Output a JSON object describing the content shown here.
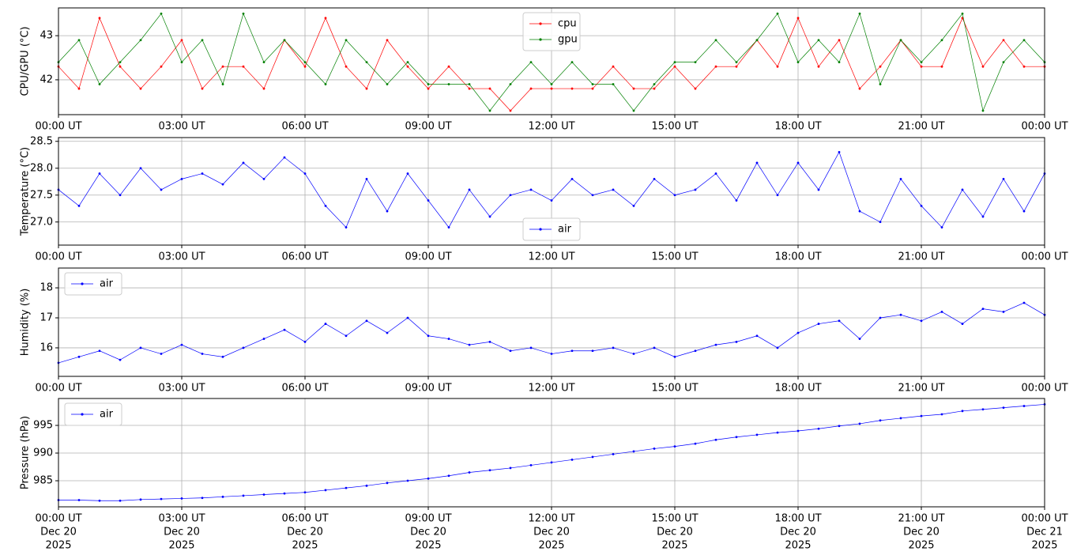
{
  "chart_data": [
    {
      "type": "line",
      "ylabel": "CPU/GPU (°C)",
      "legend": "upper center",
      "grid": true,
      "xlim": [
        0,
        24
      ],
      "ylim": [
        41.21,
        43.63
      ],
      "yticks": [
        42,
        43
      ],
      "xticks": [
        {
          "value": 0,
          "label": "00:00 UT"
        },
        {
          "value": 3,
          "label": "03:00 UT"
        },
        {
          "value": 6,
          "label": "06:00 UT"
        },
        {
          "value": 9,
          "label": "09:00 UT"
        },
        {
          "value": 12,
          "label": "12:00 UT"
        },
        {
          "value": 15,
          "label": "15:00 UT"
        },
        {
          "value": 18,
          "label": "18:00 UT"
        },
        {
          "value": 21,
          "label": "21:00 UT"
        },
        {
          "value": 24,
          "label": "00:00 UT"
        }
      ],
      "x": [
        0,
        0.5,
        1,
        1.5,
        2,
        2.5,
        3,
        3.5,
        4,
        4.5,
        5,
        5.5,
        6,
        6.5,
        7,
        7.5,
        8,
        8.5,
        9,
        9.5,
        10,
        10.5,
        11,
        11.5,
        12,
        12.5,
        13,
        13.5,
        14,
        14.5,
        15,
        15.5,
        16,
        16.5,
        17,
        17.5,
        18,
        18.5,
        19,
        19.5,
        20,
        20.5,
        21,
        21.5,
        22,
        22.5,
        23,
        23.5,
        24
      ],
      "series": [
        {
          "name": "cpu",
          "color": "#ff0000",
          "values": [
            42.3,
            41.8,
            43.4,
            42.3,
            41.8,
            42.3,
            42.9,
            41.8,
            42.3,
            42.3,
            41.8,
            42.9,
            42.3,
            43.4,
            42.3,
            41.8,
            42.9,
            42.3,
            41.8,
            42.3,
            41.8,
            41.8,
            41.3,
            41.8,
            41.8,
            41.8,
            41.8,
            42.3,
            41.8,
            41.8,
            42.3,
            41.8,
            42.3,
            42.3,
            42.9,
            42.3,
            43.4,
            42.3,
            42.9,
            41.8,
            42.3,
            42.9,
            42.3,
            42.3,
            43.4,
            42.3,
            42.9,
            42.3,
            42.3
          ]
        },
        {
          "name": "gpu",
          "color": "#008000",
          "values": [
            42.4,
            42.9,
            41.9,
            42.4,
            42.9,
            43.5,
            42.4,
            42.9,
            41.9,
            43.5,
            42.4,
            42.9,
            42.4,
            41.9,
            42.9,
            42.4,
            41.9,
            42.4,
            41.9,
            41.9,
            41.9,
            41.3,
            41.9,
            42.4,
            41.9,
            42.4,
            41.9,
            41.9,
            41.3,
            41.9,
            42.4,
            42.4,
            42.9,
            42.4,
            42.9,
            43.5,
            42.4,
            42.9,
            42.4,
            43.5,
            41.9,
            42.9,
            42.4,
            42.9,
            43.5,
            41.3,
            42.4,
            42.9,
            42.4
          ]
        }
      ]
    },
    {
      "type": "line",
      "ylabel": "Temperature (°C)",
      "legend": "lower center",
      "grid": true,
      "xlim": [
        0,
        24
      ],
      "ylim": [
        26.57,
        28.57
      ],
      "yticks": [
        {
          "value": 27,
          "label": "27.0"
        },
        27.5,
        {
          "value": 28,
          "label": "28.0"
        },
        28.5
      ],
      "xticks": [
        {
          "value": 0,
          "label": "00:00 UT"
        },
        {
          "value": 3,
          "label": "03:00 UT"
        },
        {
          "value": 6,
          "label": "06:00 UT"
        },
        {
          "value": 9,
          "label": "09:00 UT"
        },
        {
          "value": 12,
          "label": "12:00 UT"
        },
        {
          "value": 15,
          "label": "15:00 UT"
        },
        {
          "value": 18,
          "label": "18:00 UT"
        },
        {
          "value": 21,
          "label": "21:00 UT"
        },
        {
          "value": 24,
          "label": "00:00 UT"
        }
      ],
      "x": [
        0,
        0.5,
        1,
        1.5,
        2,
        2.5,
        3,
        3.5,
        4,
        4.5,
        5,
        5.5,
        6,
        6.5,
        7,
        7.5,
        8,
        8.5,
        9,
        9.5,
        10,
        10.5,
        11,
        11.5,
        12,
        12.5,
        13,
        13.5,
        14,
        14.5,
        15,
        15.5,
        16,
        16.5,
        17,
        17.5,
        18,
        18.5,
        19,
        19.5,
        20,
        20.5,
        21,
        21.5,
        22,
        22.5,
        23,
        23.5,
        24
      ],
      "series": [
        {
          "name": "air",
          "color": "#0000ff",
          "values": [
            27.6,
            27.3,
            27.9,
            27.5,
            28.0,
            27.6,
            27.8,
            27.9,
            27.7,
            28.1,
            27.8,
            28.2,
            27.9,
            27.3,
            26.9,
            27.8,
            27.2,
            27.9,
            27.4,
            26.9,
            27.6,
            27.1,
            27.5,
            27.6,
            27.4,
            27.8,
            27.5,
            27.6,
            27.3,
            27.8,
            27.5,
            27.6,
            27.9,
            27.4,
            28.1,
            27.5,
            28.1,
            27.6,
            28.3,
            27.2,
            27.0,
            27.8,
            27.3,
            26.9,
            27.6,
            27.1,
            27.8,
            27.2,
            27.9
          ]
        }
      ]
    },
    {
      "type": "line",
      "ylabel": "Humidity (%)",
      "legend": "upper left",
      "grid": true,
      "xlim": [
        0,
        24
      ],
      "ylim": [
        15.05,
        18.66
      ],
      "yticks": [
        16,
        17,
        18
      ],
      "xticks": [
        {
          "value": 0,
          "label": "00:00 UT"
        },
        {
          "value": 3,
          "label": "03:00 UT"
        },
        {
          "value": 6,
          "label": "06:00 UT"
        },
        {
          "value": 9,
          "label": "09:00 UT"
        },
        {
          "value": 12,
          "label": "12:00 UT"
        },
        {
          "value": 15,
          "label": "15:00 UT"
        },
        {
          "value": 18,
          "label": "18:00 UT"
        },
        {
          "value": 21,
          "label": "21:00 UT"
        },
        {
          "value": 24,
          "label": "00:00 UT"
        }
      ],
      "x": [
        0,
        0.5,
        1,
        1.5,
        2,
        2.5,
        3,
        3.5,
        4,
        4.5,
        5,
        5.5,
        6,
        6.5,
        7,
        7.5,
        8,
        8.5,
        9,
        9.5,
        10,
        10.5,
        11,
        11.5,
        12,
        12.5,
        13,
        13.5,
        14,
        14.5,
        15,
        15.5,
        16,
        16.5,
        17,
        17.5,
        18,
        18.5,
        19,
        19.5,
        20,
        20.5,
        21,
        21.5,
        22,
        22.5,
        23,
        23.5,
        24
      ],
      "series": [
        {
          "name": "air",
          "color": "#0000ff",
          "values": [
            15.5,
            15.7,
            15.9,
            15.6,
            16.0,
            15.8,
            16.1,
            15.8,
            15.7,
            16.0,
            16.3,
            16.6,
            16.2,
            16.8,
            16.4,
            16.9,
            16.5,
            17.0,
            16.4,
            16.3,
            16.1,
            16.2,
            15.9,
            16.0,
            15.8,
            15.9,
            15.9,
            16.0,
            15.8,
            16.0,
            15.7,
            15.9,
            16.1,
            16.2,
            16.4,
            16.0,
            16.5,
            16.8,
            16.9,
            16.3,
            17.0,
            17.1,
            16.9,
            17.2,
            16.8,
            17.3,
            17.2,
            17.5,
            17.1
          ]
        }
      ]
    },
    {
      "type": "line",
      "ylabel": "Pressure (hPa)",
      "legend": "upper left",
      "grid": true,
      "xlim": [
        0,
        24
      ],
      "ylim": [
        980.29,
        999.86
      ],
      "yticks": [
        985,
        990,
        995
      ],
      "xticks": [
        {
          "value": 0,
          "label": [
            "00:00 UT",
            "Dec 20",
            "2025"
          ]
        },
        {
          "value": 3,
          "label": [
            "03:00 UT",
            "Dec 20",
            "2025"
          ]
        },
        {
          "value": 6,
          "label": [
            "06:00 UT",
            "Dec 20",
            "2025"
          ]
        },
        {
          "value": 9,
          "label": [
            "09:00 UT",
            "Dec 20",
            "2025"
          ]
        },
        {
          "value": 12,
          "label": [
            "12:00 UT",
            "Dec 20",
            "2025"
          ]
        },
        {
          "value": 15,
          "label": [
            "15:00 UT",
            "Dec 20",
            "2025"
          ]
        },
        {
          "value": 18,
          "label": [
            "18:00 UT",
            "Dec 20",
            "2025"
          ]
        },
        {
          "value": 21,
          "label": [
            "21:00 UT",
            "Dec 20",
            "2025"
          ]
        },
        {
          "value": 24,
          "label": [
            "00:00 UT",
            "Dec 21",
            "2025"
          ]
        }
      ],
      "x": [
        0,
        0.5,
        1,
        1.5,
        2,
        2.5,
        3,
        3.5,
        4,
        4.5,
        5,
        5.5,
        6,
        6.5,
        7,
        7.5,
        8,
        8.5,
        9,
        9.5,
        10,
        10.5,
        11,
        11.5,
        12,
        12.5,
        13,
        13.5,
        14,
        14.5,
        15,
        15.5,
        16,
        16.5,
        17,
        17.5,
        18,
        18.5,
        19,
        19.5,
        20,
        20.5,
        21,
        21.5,
        22,
        22.5,
        23,
        23.5,
        24
      ],
      "series": [
        {
          "name": "air",
          "color": "#0000ff",
          "values": [
            981.5,
            981.5,
            981.4,
            981.4,
            981.6,
            981.7,
            981.8,
            981.9,
            982.1,
            982.3,
            982.5,
            982.7,
            982.9,
            983.3,
            983.7,
            984.1,
            984.6,
            985.0,
            985.4,
            985.9,
            986.5,
            986.9,
            987.3,
            987.8,
            988.3,
            988.8,
            989.3,
            989.8,
            990.3,
            990.8,
            991.2,
            991.7,
            992.4,
            992.9,
            993.3,
            993.7,
            994.0,
            994.4,
            994.9,
            995.3,
            995.9,
            996.3,
            996.7,
            997.0,
            997.6,
            997.9,
            998.2,
            998.5,
            998.8
          ]
        }
      ]
    }
  ]
}
